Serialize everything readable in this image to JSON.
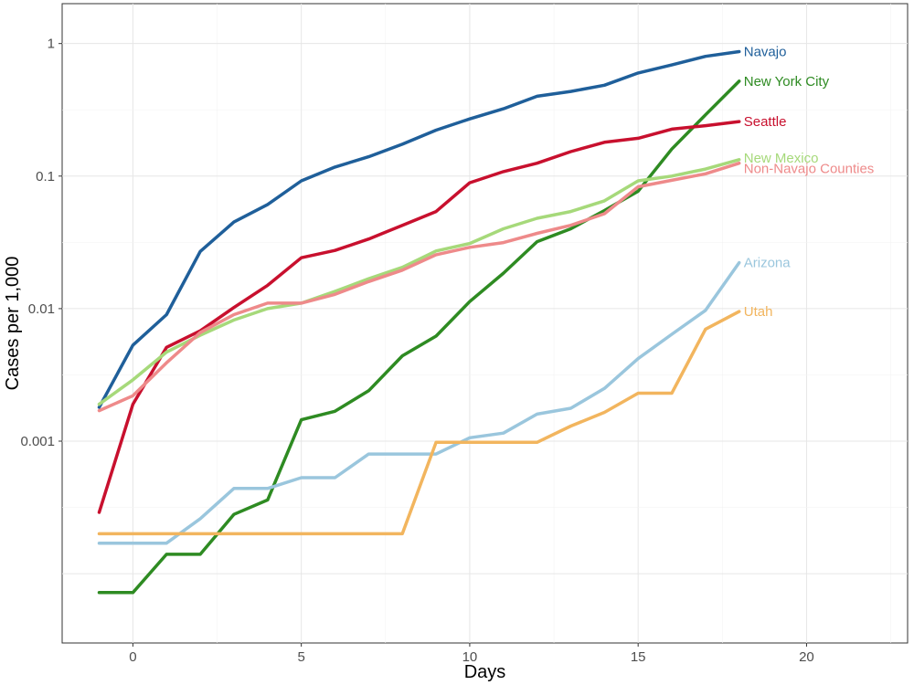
{
  "chart_data": {
    "type": "line",
    "title": "",
    "xlabel": "Days",
    "ylabel": "Cases per 1,000",
    "y_scale": "log10",
    "xlim": [
      -2.1,
      23
    ],
    "ylim": [
      3e-05,
      2.0
    ],
    "x_ticks": [
      0,
      5,
      10,
      15,
      20
    ],
    "x_tick_labels": [
      "0",
      "5",
      "10",
      "15",
      "20"
    ],
    "y_ticks": [
      0.001,
      0.01,
      0.1,
      1
    ],
    "y_tick_labels": [
      "0.001",
      "0.01",
      "0.1",
      "1"
    ],
    "grid": true,
    "legend": "direct labels at line ends",
    "series": [
      {
        "name": "Navajo",
        "color": "#1f5f9a",
        "x": [
          -1,
          0,
          1,
          2,
          3,
          4,
          5,
          6,
          7,
          8,
          9,
          10,
          11,
          12,
          13,
          14,
          15,
          16,
          17,
          18
        ],
        "y": [
          0.0018,
          0.0053,
          0.009,
          0.027,
          0.045,
          0.061,
          0.092,
          0.117,
          0.14,
          0.174,
          0.222,
          0.27,
          0.322,
          0.4,
          0.435,
          0.485,
          0.6,
          0.69,
          0.8,
          0.87
        ]
      },
      {
        "name": "New York City",
        "color": "#2e8b22",
        "x": [
          -1,
          0,
          1,
          2,
          3,
          4,
          5,
          6,
          7,
          8,
          9,
          10,
          11,
          12,
          13,
          14,
          15,
          16,
          17,
          18
        ],
        "y": [
          7.2e-05,
          7.2e-05,
          0.00014,
          0.00014,
          0.00028,
          0.00036,
          0.00145,
          0.00168,
          0.0024,
          0.0044,
          0.0062,
          0.0113,
          0.0185,
          0.032,
          0.04,
          0.055,
          0.077,
          0.16,
          0.29,
          0.52
        ]
      },
      {
        "name": "Seattle",
        "color": "#c8102e",
        "x": [
          -1,
          0,
          1,
          2,
          3,
          4,
          5,
          6,
          7,
          8,
          9,
          10,
          11,
          12,
          13,
          14,
          15,
          16,
          17,
          18
        ],
        "y": [
          0.00029,
          0.0019,
          0.0051,
          0.0068,
          0.0102,
          0.015,
          0.0242,
          0.0275,
          0.0335,
          0.0425,
          0.054,
          0.089,
          0.108,
          0.125,
          0.153,
          0.18,
          0.193,
          0.226,
          0.24,
          0.258
        ]
      },
      {
        "name": "New Mexico",
        "color": "#a6d97a",
        "x": [
          -1,
          0,
          1,
          2,
          3,
          4,
          5,
          6,
          7,
          8,
          9,
          10,
          11,
          12,
          13,
          14,
          15,
          16,
          17,
          18
        ],
        "y": [
          0.0019,
          0.0029,
          0.0047,
          0.0063,
          0.0082,
          0.01,
          0.011,
          0.0135,
          0.0168,
          0.0205,
          0.0272,
          0.031,
          0.04,
          0.048,
          0.054,
          0.065,
          0.092,
          0.1,
          0.113,
          0.133
        ]
      },
      {
        "name": "Non-Navajo Counties",
        "color": "#ee8a8a",
        "x": [
          -1,
          0,
          1,
          2,
          3,
          4,
          5,
          6,
          7,
          8,
          9,
          10,
          11,
          12,
          13,
          14,
          15,
          16,
          17,
          18
        ],
        "y": [
          0.0017,
          0.0022,
          0.0039,
          0.0066,
          0.009,
          0.011,
          0.011,
          0.0128,
          0.016,
          0.0195,
          0.0255,
          0.029,
          0.0315,
          0.037,
          0.0425,
          0.052,
          0.083,
          0.093,
          0.104,
          0.125
        ]
      },
      {
        "name": "Arizona",
        "color": "#9ac6dd",
        "x": [
          -1,
          0,
          1,
          2,
          3,
          4,
          5,
          6,
          7,
          8,
          9,
          10,
          11,
          12,
          13,
          14,
          15,
          16,
          17,
          18
        ],
        "y": [
          0.00017,
          0.00017,
          0.00017,
          0.00026,
          0.00044,
          0.00044,
          0.00053,
          0.00053,
          0.0008,
          0.0008,
          0.0008,
          0.00106,
          0.00115,
          0.0016,
          0.00177,
          0.0025,
          0.0042,
          0.0064,
          0.0097,
          0.0222
        ]
      },
      {
        "name": "Utah",
        "color": "#f2b55e",
        "x": [
          -1,
          0,
          1,
          2,
          3,
          4,
          5,
          6,
          7,
          8,
          9,
          10,
          11,
          12,
          13,
          14,
          15,
          16,
          17,
          18
        ],
        "y": [
          0.0002,
          0.0002,
          0.0002,
          0.0002,
          0.0002,
          0.0002,
          0.0002,
          0.0002,
          0.0002,
          0.0002,
          0.00098,
          0.00098,
          0.00098,
          0.00098,
          0.0013,
          0.00165,
          0.0023,
          0.0023,
          0.007,
          0.0095
        ]
      }
    ]
  }
}
